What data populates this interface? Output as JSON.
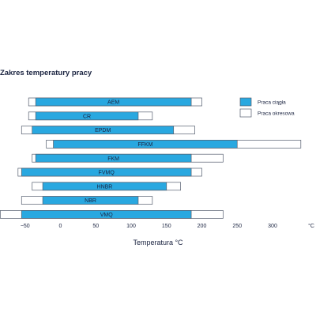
{
  "chart_data": {
    "type": "bar",
    "orientation": "horizontal",
    "title": "Zakres temperatury pracy",
    "xlabel": "Temperatura °C",
    "x_unit": "°C",
    "xlim": [
      -55,
      335
    ],
    "x_ticks": [
      -50,
      0,
      50,
      100,
      150,
      200,
      250,
      300
    ],
    "categories": [
      "AEM",
      "CR",
      "EPDM",
      "FFKM",
      "FKM",
      "FVMQ",
      "HNBR",
      "NBR",
      "VMQ"
    ],
    "series": [
      {
        "name": "Praca ciągła",
        "color": "#29a8e0",
        "ranges": [
          [
            -35,
            185
          ],
          [
            -35,
            110
          ],
          [
            -40,
            160
          ],
          [
            -10,
            250
          ],
          [
            -35,
            185
          ],
          [
            -55,
            185
          ],
          [
            -25,
            150
          ],
          [
            -25,
            110
          ],
          [
            -55,
            185
          ]
        ]
      },
      {
        "name": "Praca okresowa",
        "color": "#ffffff",
        "ranges": [
          [
            -45,
            200
          ],
          [
            -45,
            130
          ],
          [
            -55,
            190
          ],
          [
            -20,
            340
          ],
          [
            -40,
            230
          ],
          [
            -60,
            200
          ],
          [
            -40,
            170
          ],
          [
            -55,
            130
          ],
          [
            -85,
            230
          ]
        ]
      }
    ],
    "legend_position": "right",
    "grid": false
  }
}
